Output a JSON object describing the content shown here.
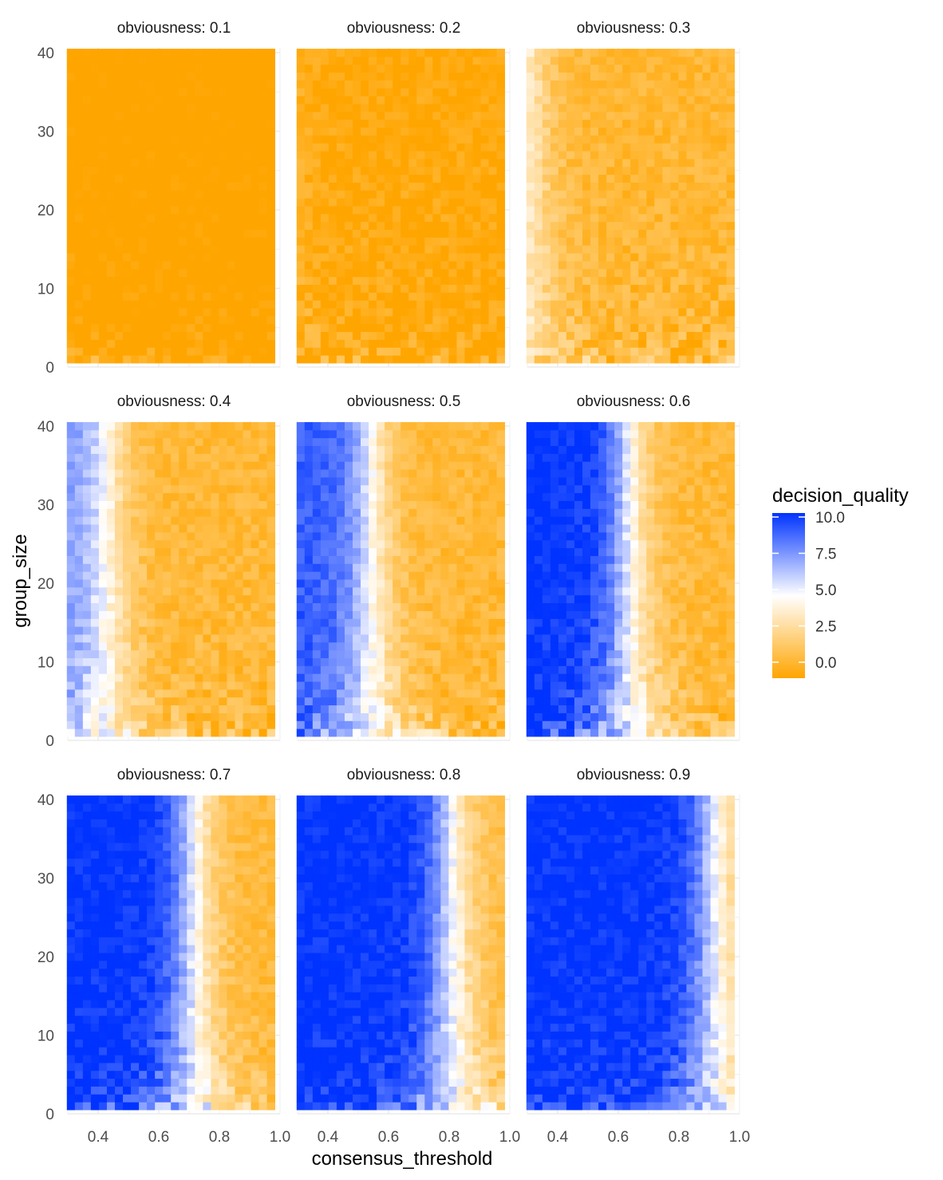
{
  "chart_data": {
    "type": "heatmap",
    "facet_prefix": "obviousness: ",
    "facets": [
      0.1,
      0.2,
      0.3,
      0.4,
      0.5,
      0.6,
      0.7,
      0.8,
      0.9
    ],
    "facet_labels": [
      "obviousness: 0.1",
      "obviousness: 0.2",
      "obviousness: 0.3",
      "obviousness: 0.4",
      "obviousness: 0.5",
      "obviousness: 0.6",
      "obviousness: 0.7",
      "obviousness: 0.8",
      "obviousness: 0.9"
    ],
    "xlabel": "consensus_threshold",
    "ylabel": "group_size",
    "x_range": [
      0.31,
      0.97
    ],
    "x_cell_width": 0.0264,
    "xlim": [
      0.3,
      1.0
    ],
    "x_ticks": [
      0.4,
      0.6,
      0.8,
      1.0
    ],
    "x_tick_labels": [
      "0.4",
      "0.6",
      "0.8",
      "1.0"
    ],
    "y_range": [
      1,
      40
    ],
    "ylim": [
      0,
      40
    ],
    "y_ticks": [
      0,
      10,
      20,
      30,
      40
    ],
    "y_tick_labels": [
      "0",
      "10",
      "20",
      "30",
      "40"
    ],
    "legend": {
      "title": "decision_quality",
      "min": 0,
      "max": 10,
      "breaks": [
        10.0,
        7.5,
        5.0,
        2.5,
        0.0
      ],
      "break_labels": [
        "10.0",
        "7.5",
        "5.0",
        "2.5",
        "0.0"
      ],
      "colors": {
        "low": "#FFA500",
        "mid": "#FFFFFF",
        "high": "#0033FF",
        "panel_grid": "#EBEBEB"
      },
      "placement": "right"
    },
    "boundary_model": {
      "description_of_values": "decision_quality read from color; sharp transition from high (blue) to low (orange) near a threshold that moves right with obviousness",
      "boundary_threshold_by_facet": [
        0.2,
        0.26,
        0.33,
        0.44,
        0.54,
        0.63,
        0.71,
        0.8,
        0.91
      ],
      "peak_quality_by_facet": [
        1.0,
        2.0,
        5.5,
        7.5,
        9.0,
        10.0,
        10.0,
        10.0,
        10.0
      ],
      "base_quality_by_facet": [
        -0.4,
        0.2,
        1.0,
        1.1,
        1.1,
        1.1,
        1.2,
        1.4,
        1.6
      ]
    }
  }
}
